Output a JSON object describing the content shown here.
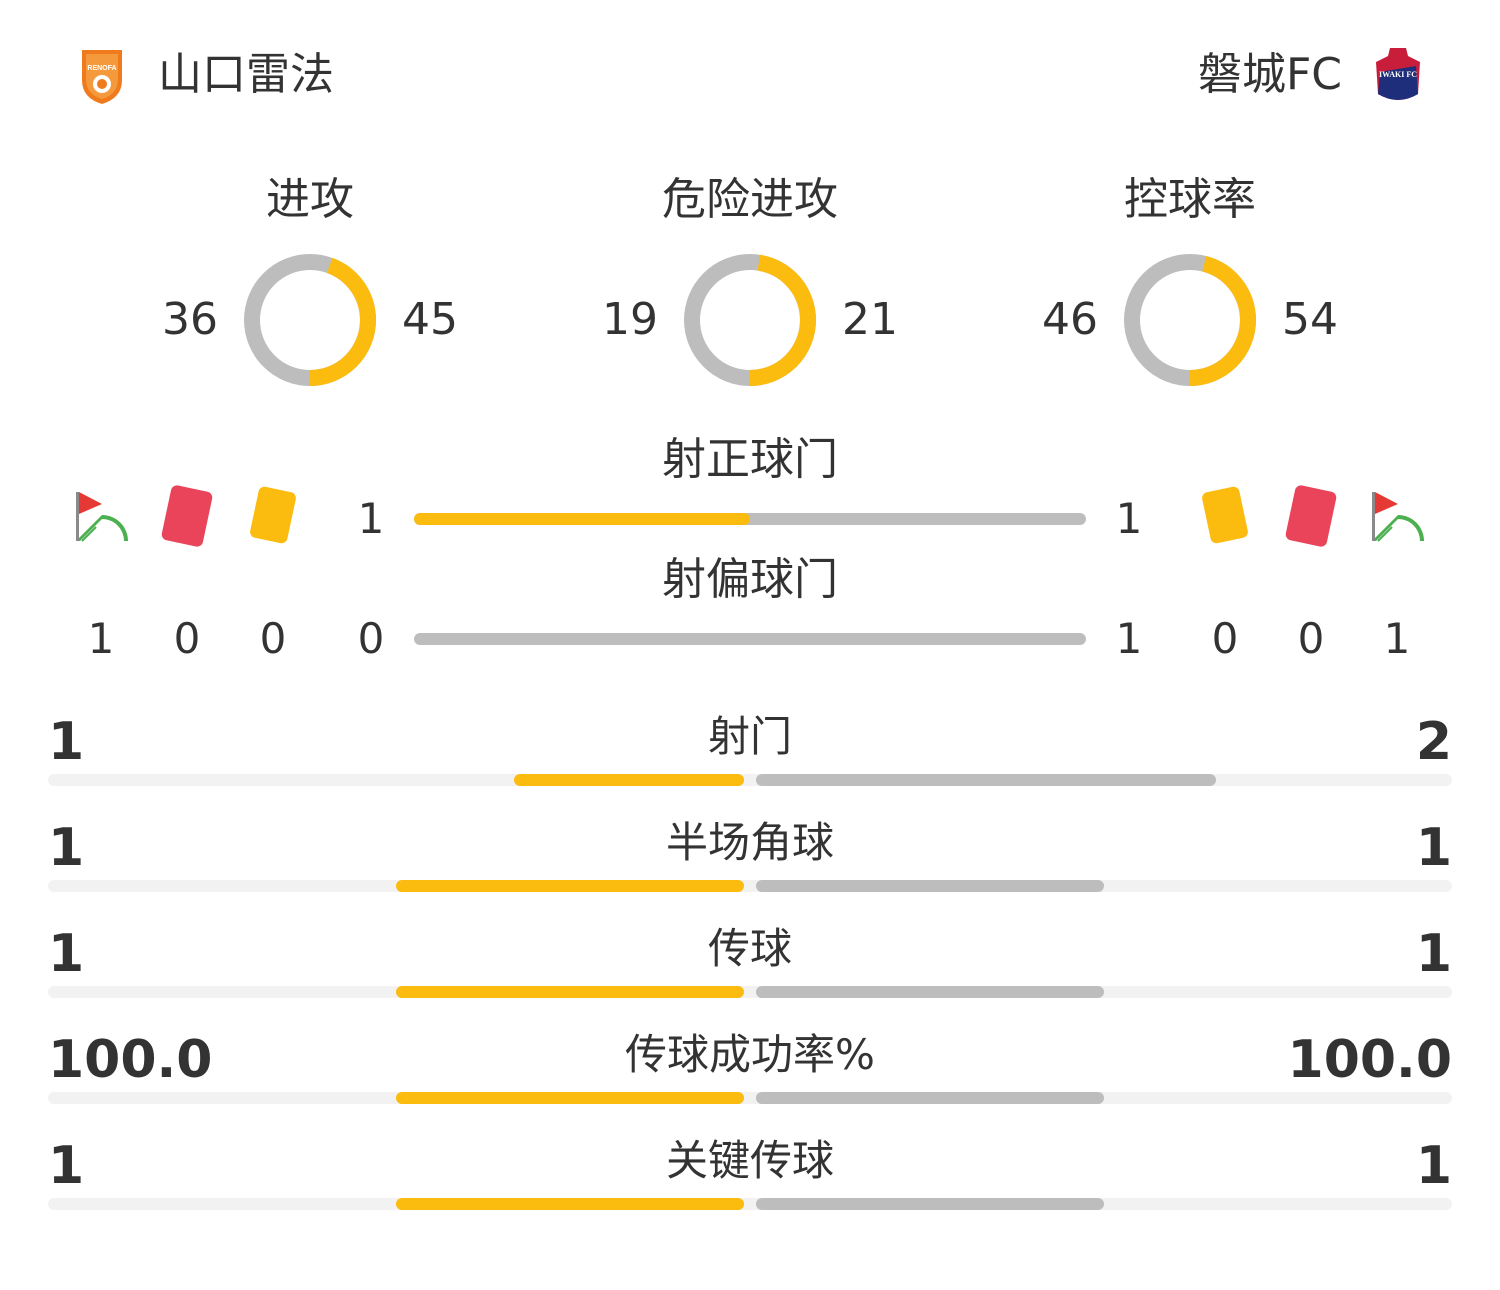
{
  "colors": {
    "home": "#fbbb0f",
    "away": "#bdbdbd",
    "track": "#f2f2f2",
    "text": "#333333"
  },
  "home": {
    "name": "山口雷法",
    "logo_text": "RENOFA"
  },
  "away": {
    "name": "磐城FC",
    "logo_text": "IWAKI FC"
  },
  "rings": [
    {
      "label": "进攻",
      "home": "36",
      "away": "45"
    },
    {
      "label": "危险进攻",
      "home": "19",
      "away": "21"
    },
    {
      "label": "控球率",
      "home": "46",
      "away": "54"
    }
  ],
  "shots_on_target": {
    "label": "射正球门",
    "home": "1",
    "away": "1"
  },
  "shots_off_target": {
    "label": "射偏球门",
    "home": "0",
    "away": "1"
  },
  "counts": {
    "icons": [
      "corner-flag-icon",
      "red-card-icon",
      "yellow-card-icon"
    ],
    "home": {
      "corners": "1",
      "red_cards": "0",
      "yellow_cards": "0"
    },
    "away": {
      "corners": "1",
      "red_cards": "0",
      "yellow_cards": "0"
    }
  },
  "bars": [
    {
      "label": "射门",
      "home": "1",
      "away": "2"
    },
    {
      "label": "半场角球",
      "home": "1",
      "away": "1"
    },
    {
      "label": "传球",
      "home": "1",
      "away": "1"
    },
    {
      "label": "传球成功率%",
      "home": "100.0",
      "away": "100.0"
    },
    {
      "label": "关键传球",
      "home": "1",
      "away": "1"
    }
  ]
}
